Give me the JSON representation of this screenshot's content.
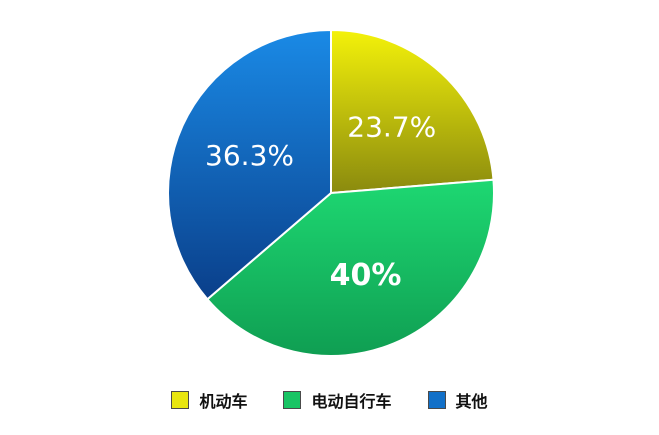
{
  "chart_data": {
    "type": "pie",
    "title": "",
    "categories": [
      "机动车",
      "电动自行车",
      "其他"
    ],
    "values": [
      23.7,
      40,
      36.3
    ],
    "labels": [
      "23.7%",
      "40%",
      "36.3%"
    ],
    "label_bold": [
      false,
      true,
      false
    ],
    "colors": {
      "机动车": {
        "light": "#f4f20a",
        "dark": "#8a8a0e"
      },
      "电动自行车": {
        "light": "#1ed872",
        "dark": "#0f9e52"
      },
      "其他": {
        "light": "#1a8ae6",
        "dark": "#0a3f8a"
      }
    },
    "start_angle_deg": 0,
    "direction": "clockwise",
    "legend_position": "bottom"
  },
  "legend": [
    {
      "label": "机动车",
      "swatch": "#e8e610"
    },
    {
      "label": "电动自行车",
      "swatch": "#18c464"
    },
    {
      "label": "其他",
      "swatch": "#1270c8"
    }
  ]
}
